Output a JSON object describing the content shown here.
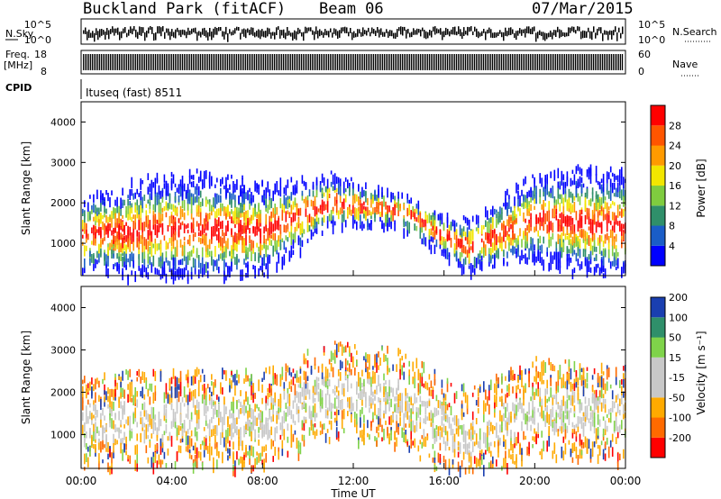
{
  "header": {
    "title": "Buckland Park (fitACF)",
    "beam": "Beam 06",
    "date": "07/Mar/2015"
  },
  "strips": {
    "nsky_label": "N.Sky",
    "nsky_ticks": [
      "10^5",
      "10^0"
    ],
    "nsearch_label": "N.Search",
    "freq_label": "Freq.",
    "freq_unit": "[MHz]",
    "freq_ticks": [
      "18",
      "8"
    ],
    "nave_ticks": [
      "60",
      "0"
    ],
    "nave_label": "Nave",
    "cpid_label": "CPID",
    "cpid_value": "Ituseq (fast) 8511"
  },
  "colors": {
    "power": [
      "#0000ff",
      "#1a5dc7",
      "#2f8f6a",
      "#7fcc3f",
      "#f2e600",
      "#ff9a00",
      "#ff5500",
      "#ff0000"
    ],
    "velocity": [
      "#ff0000",
      "#ff6a00",
      "#ffaa00",
      "#c8c8c8",
      "#c8c8c8",
      "#7fd34a",
      "#2f8f6a",
      "#1a3fb0"
    ]
  },
  "chart_data": [
    {
      "type": "heatmap",
      "panel": "power",
      "xlabel": "",
      "ylabel": "Slant Range [km]",
      "xlim": [
        0,
        24
      ],
      "ylim": [
        200,
        4500
      ],
      "yticks": [
        1000,
        2000,
        3000,
        4000
      ],
      "colorbar_label": "Power [dB]",
      "colorbar_ticks": [
        "4",
        "8",
        "12",
        "16",
        "20",
        "24",
        "28"
      ],
      "approx_peak_range_km_by_hour": [
        {
          "x": 0,
          "y": 1300
        },
        {
          "x": 4,
          "y": 1450
        },
        {
          "x": 8,
          "y": 1400
        },
        {
          "x": 11,
          "y": 2100
        },
        {
          "x": 14,
          "y": 1900
        },
        {
          "x": 17,
          "y": 1000
        },
        {
          "x": 20,
          "y": 1700
        },
        {
          "x": 24,
          "y": 1500
        }
      ]
    },
    {
      "type": "heatmap",
      "panel": "velocity",
      "xlabel": "Time UT",
      "ylabel": "Slant Range [km]",
      "xlim": [
        0,
        24
      ],
      "ylim": [
        200,
        4500
      ],
      "yticks": [
        1000,
        2000,
        3000,
        4000
      ],
      "xticks": [
        "00:00",
        "04:00",
        "08:00",
        "12:00",
        "16:00",
        "20:00",
        "00:00"
      ],
      "colorbar_label": "Velocity [m s⁻¹]",
      "colorbar_ticks": [
        "-200",
        "-100",
        "-50",
        "-15",
        "15",
        "50",
        "100",
        "200"
      ]
    }
  ]
}
